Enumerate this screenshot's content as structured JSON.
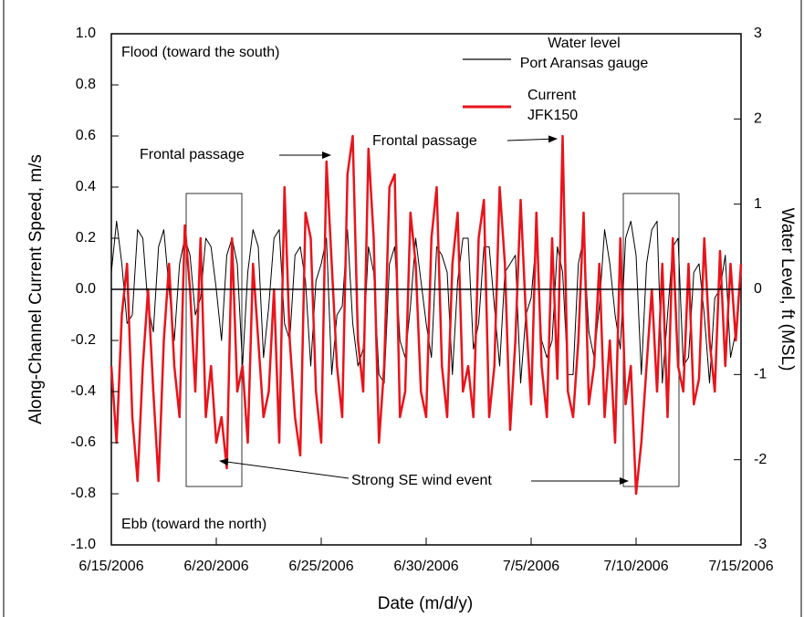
{
  "chart_data": {
    "type": "line",
    "x_label": "Date (m/d/y)",
    "y_label": "Along-Channel Current Speed, m/s",
    "y2_label": "Water Level, ft (MSL)",
    "annotations": [
      "Flood (toward the south)",
      "Ebb (toward the north)",
      "Frontal passage",
      "Frontal passage",
      "Strong SE wind event"
    ],
    "xlim": [
      0,
      30
    ],
    "xticks": [
      {
        "value": 0,
        "label": "6/15/2006"
      },
      {
        "value": 5,
        "label": "6/20/2006"
      },
      {
        "value": 10,
        "label": "6/25/2006"
      },
      {
        "value": 15,
        "label": "6/30/2006"
      },
      {
        "value": 20,
        "label": "7/5/2006"
      },
      {
        "value": 25,
        "label": "7/10/2006"
      },
      {
        "value": 30,
        "label": "7/15/2006"
      }
    ],
    "ylim": [
      -1,
      1
    ],
    "yticks": [
      {
        "value": -1,
        "label": "-1.0"
      },
      {
        "value": -0.8,
        "label": "-0.8"
      },
      {
        "value": -0.6,
        "label": "-0.6"
      },
      {
        "value": -0.4,
        "label": "-0.4"
      },
      {
        "value": -0.2,
        "label": "-0.2"
      },
      {
        "value": 0,
        "label": "0.0"
      },
      {
        "value": 0.2,
        "label": "0.2"
      },
      {
        "value": 0.4,
        "label": "0.4"
      },
      {
        "value": 0.6,
        "label": "0.6"
      },
      {
        "value": 0.8,
        "label": "0.8"
      },
      {
        "value": 1,
        "label": "1.0"
      }
    ],
    "y2lim": [
      -3,
      3
    ],
    "y2ticks": [
      -3,
      -2,
      -1,
      0,
      1,
      2,
      3
    ],
    "x": [
      0,
      0.25,
      0.5,
      0.75,
      1,
      1.25,
      1.5,
      1.75,
      2,
      2.25,
      2.5,
      2.75,
      3,
      3.25,
      3.5,
      3.75,
      4,
      4.25,
      4.5,
      4.75,
      5,
      5.25,
      5.5,
      5.75,
      6,
      6.25,
      6.5,
      6.75,
      7,
      7.25,
      7.5,
      7.75,
      8,
      8.25,
      8.5,
      8.75,
      9,
      9.25,
      9.5,
      9.75,
      10,
      10.25,
      10.5,
      10.75,
      11,
      11.25,
      11.5,
      11.75,
      12,
      12.25,
      12.5,
      12.75,
      13,
      13.25,
      13.5,
      13.75,
      14,
      14.25,
      14.5,
      14.75,
      15,
      15.25,
      15.5,
      15.75,
      16,
      16.25,
      16.5,
      16.75,
      17,
      17.25,
      17.5,
      17.75,
      18,
      18.25,
      18.5,
      18.75,
      19,
      19.25,
      19.5,
      19.75,
      20,
      20.25,
      20.5,
      20.75,
      21,
      21.25,
      21.5,
      21.75,
      22,
      22.25,
      22.5,
      22.75,
      23,
      23.25,
      23.5,
      23.75,
      24,
      24.25,
      24.5,
      24.75,
      25,
      25.25,
      25.5,
      25.75,
      26,
      26.25,
      26.5,
      26.75,
      27,
      27.25,
      27.5,
      27.75,
      28,
      28.25,
      28.5,
      28.75,
      29,
      29.25,
      29.5,
      29.75,
      30
    ],
    "series": [
      {
        "name": "Water level\nPort Aransas gauge",
        "color": "#000000",
        "axis": "y2",
        "values": [
          0.2,
          0.8,
          0.3,
          -0.4,
          -0.3,
          0.7,
          0.6,
          -0.2,
          -0.5,
          0.5,
          0.7,
          0.0,
          -0.6,
          0.3,
          0.6,
          0.4,
          -0.3,
          -0.1,
          0.6,
          0.5,
          0.0,
          -0.6,
          0.4,
          0.6,
          0.3,
          -0.9,
          0.2,
          0.7,
          0.5,
          -0.8,
          -0.2,
          0.6,
          0.7,
          -0.4,
          -0.6,
          0.4,
          0.5,
          0.1,
          -0.9,
          0.1,
          0.3,
          0.6,
          -1.0,
          -0.3,
          -0.2,
          0.7,
          -0.4,
          -0.9,
          -0.7,
          0.5,
          0.2,
          -1.0,
          -1.1,
          0.3,
          0.5,
          -0.6,
          -0.8,
          -0.2,
          0.6,
          0.1,
          -0.4,
          -0.8,
          0.5,
          0.4,
          0.2,
          -1.0,
          0.1,
          0.6,
          0.6,
          -0.7,
          -0.4,
          0.5,
          0.5,
          -0.2,
          -0.9,
          0.2,
          0.3,
          0.4,
          -1.1,
          -0.3,
          -0.1,
          0.6,
          -0.6,
          -0.8,
          -0.6,
          0.5,
          0.2,
          -1.0,
          -1.0,
          0.3,
          0.6,
          -0.5,
          -0.8,
          -0.2,
          0.7,
          0.3,
          -0.3,
          -0.7,
          0.6,
          0.8,
          0.4,
          -1.0,
          0.3,
          0.7,
          0.8,
          -1.1,
          -0.3,
          0.5,
          0.6,
          -0.9,
          -0.8,
          0.2,
          0.3,
          -0.3,
          -1.1,
          -0.1,
          0.0,
          0.4,
          -0.8,
          -0.5,
          0.3
        ]
      },
      {
        "name": "Current\nJFK150",
        "color": "#e8141b",
        "values": [
          -0.3,
          -0.6,
          -0.1,
          0.1,
          -0.5,
          -0.75,
          -0.3,
          0.0,
          -0.4,
          -0.75,
          -0.2,
          0.1,
          -0.3,
          -0.5,
          0.25,
          0.0,
          -0.4,
          0.2,
          -0.5,
          -0.3,
          -0.6,
          -0.5,
          -0.7,
          0.2,
          -0.4,
          -0.3,
          -0.6,
          0.1,
          -0.2,
          -0.5,
          -0.4,
          0.0,
          -0.6,
          0.4,
          -0.2,
          -0.5,
          -0.65,
          0.3,
          0.2,
          -0.4,
          -0.6,
          0.5,
          0.1,
          -0.3,
          -0.5,
          0.45,
          0.6,
          -0.2,
          -0.4,
          0.55,
          0.2,
          -0.6,
          -0.3,
          0.4,
          0.45,
          -0.5,
          -0.4,
          0.3,
          0.1,
          -0.4,
          -0.5,
          0.2,
          0.4,
          -0.3,
          -0.5,
          0.1,
          0.3,
          -0.4,
          -0.3,
          -0.5,
          0.2,
          0.35,
          -0.5,
          -0.3,
          0.4,
          0.1,
          -0.55,
          -0.2,
          0.35,
          -0.1,
          -0.45,
          0.3,
          -0.3,
          -0.5,
          0.2,
          -0.35,
          0.6,
          -0.4,
          -0.5,
          -0.2,
          0.3,
          -0.45,
          -0.3,
          0.1,
          -0.5,
          -0.2,
          -0.6,
          0.2,
          -0.45,
          -0.3,
          -0.8,
          -0.6,
          -0.3,
          0.0,
          -0.4,
          0.1,
          -0.5,
          0.2,
          -0.3,
          -0.4,
          0.1,
          -0.45,
          -0.35,
          0.2,
          -0.2,
          -0.4,
          0.15,
          -0.3,
          0.1,
          -0.2,
          0.1
        ]
      }
    ]
  }
}
